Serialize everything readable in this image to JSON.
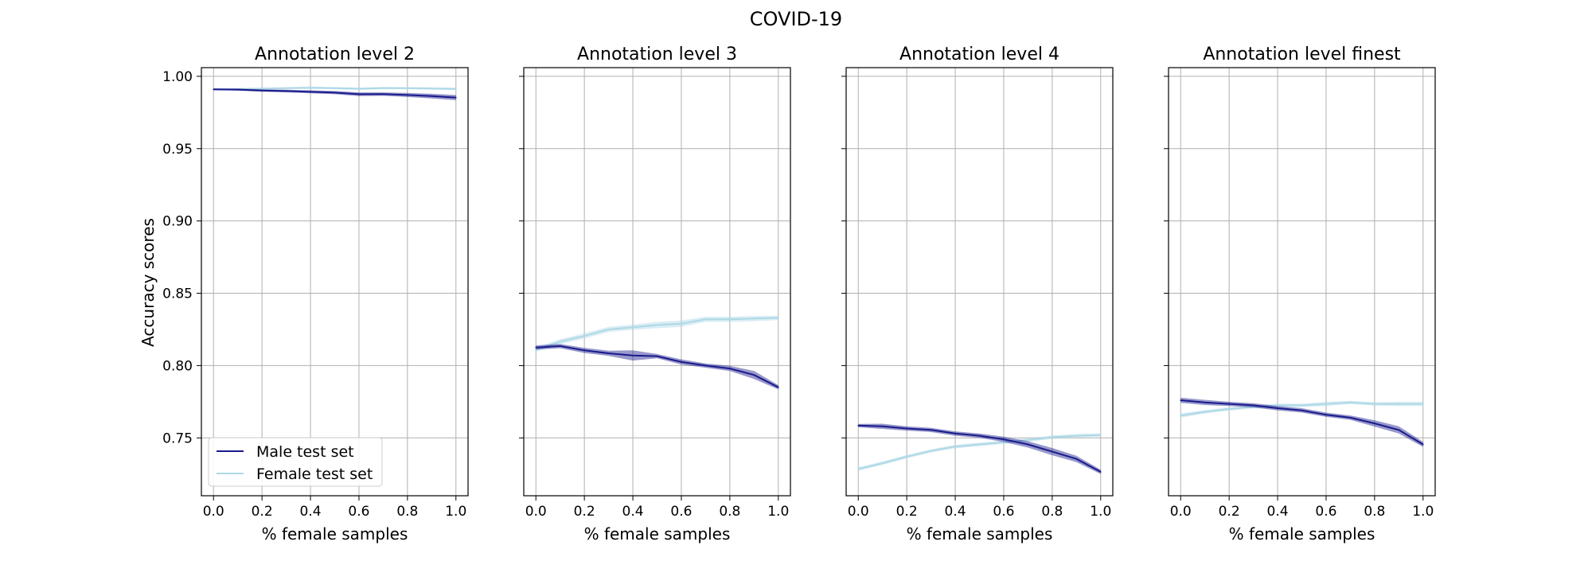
{
  "suptitle": "COVID-19",
  "ylabel": "Accuracy scores",
  "legend": {
    "entries": [
      {
        "label": "Male test set",
        "color": "#1a1a8c"
      },
      {
        "label": "Female test set",
        "color": "#add8e6"
      }
    ],
    "placement": "lower left of first panel"
  },
  "chart_data": [
    {
      "type": "line",
      "title": "Annotation level 2",
      "xlabel": "% female samples",
      "ylabel": "Accuracy scores",
      "x": [
        0.0,
        0.1,
        0.2,
        0.3,
        0.4,
        0.5,
        0.6,
        0.7,
        0.8,
        0.9,
        1.0
      ],
      "xticks": [
        "0.0",
        "0.2",
        "0.4",
        "0.6",
        "0.8",
        "1.0"
      ],
      "yticks": [
        "0.75",
        "0.80",
        "0.85",
        "0.90",
        "0.95",
        "1.00"
      ],
      "xlim": [
        -0.05,
        1.05
      ],
      "ylim": [
        0.71,
        1.006
      ],
      "grid": true,
      "series": [
        {
          "name": "Male test set",
          "color": "#1a1a8c",
          "values": [
            0.991,
            0.9908,
            0.9902,
            0.9898,
            0.9893,
            0.9887,
            0.9876,
            0.9877,
            0.9871,
            0.9863,
            0.9853
          ],
          "band": [
            0.0006,
            0.0007,
            0.0008,
            0.0009,
            0.001,
            0.0011,
            0.0013,
            0.0012,
            0.0014,
            0.0016,
            0.0018
          ]
        },
        {
          "name": "Female test set",
          "color": "#add8e6",
          "values": [
            0.9908,
            0.9912,
            0.9915,
            0.9918,
            0.9921,
            0.9918,
            0.9914,
            0.9919,
            0.9918,
            0.9916,
            0.9913
          ],
          "band": [
            0.0005,
            0.0006,
            0.0006,
            0.0007,
            0.0008,
            0.0007,
            0.0008,
            0.0008,
            0.0007,
            0.0008,
            0.0008
          ]
        }
      ]
    },
    {
      "type": "line",
      "title": "Annotation level 3",
      "xlabel": "% female samples",
      "x": [
        0.0,
        0.1,
        0.2,
        0.3,
        0.4,
        0.5,
        0.6,
        0.7,
        0.8,
        0.9,
        1.0
      ],
      "xticks": [
        "0.0",
        "0.2",
        "0.4",
        "0.6",
        "0.8",
        "1.0"
      ],
      "xlim": [
        -0.05,
        1.05
      ],
      "ylim": [
        0.71,
        1.006
      ],
      "grid": true,
      "series": [
        {
          "name": "Male test set",
          "color": "#1a1a8c",
          "values": [
            0.8125,
            0.8135,
            0.8105,
            0.8085,
            0.807,
            0.8065,
            0.8025,
            0.8,
            0.798,
            0.7935,
            0.785
          ],
          "band": [
            0.0015,
            0.0015,
            0.0018,
            0.0018,
            0.0035,
            0.0015,
            0.0018,
            0.0015,
            0.0018,
            0.0028,
            0.0015
          ]
        },
        {
          "name": "Female test set",
          "color": "#add8e6",
          "values": [
            0.811,
            0.8165,
            0.8205,
            0.825,
            0.8265,
            0.828,
            0.829,
            0.832,
            0.832,
            0.8325,
            0.833
          ],
          "band": [
            0.0015,
            0.0018,
            0.0018,
            0.0018,
            0.0018,
            0.0022,
            0.0022,
            0.0018,
            0.0018,
            0.0018,
            0.0015
          ]
        }
      ]
    },
    {
      "type": "line",
      "title": "Annotation level 4",
      "xlabel": "% female samples",
      "x": [
        0.0,
        0.1,
        0.2,
        0.3,
        0.4,
        0.5,
        0.6,
        0.7,
        0.8,
        0.9,
        1.0
      ],
      "xticks": [
        "0.0",
        "0.2",
        "0.4",
        "0.6",
        "0.8",
        "1.0"
      ],
      "xlim": [
        -0.05,
        1.05
      ],
      "ylim": [
        0.71,
        1.006
      ],
      "grid": true,
      "series": [
        {
          "name": "Male test set",
          "color": "#1a1a8c",
          "values": [
            0.7585,
            0.758,
            0.7565,
            0.7555,
            0.753,
            0.7515,
            0.749,
            0.7455,
            0.7405,
            0.7355,
            0.7265
          ],
          "band": [
            0.0012,
            0.0018,
            0.0015,
            0.0015,
            0.0015,
            0.0015,
            0.0018,
            0.0022,
            0.0025,
            0.0022,
            0.0015
          ]
        },
        {
          "name": "Female test set",
          "color": "#add8e6",
          "values": [
            0.7285,
            0.7325,
            0.737,
            0.741,
            0.744,
            0.7455,
            0.747,
            0.7485,
            0.7505,
            0.7515,
            0.752
          ],
          "band": [
            0.0012,
            0.0012,
            0.0012,
            0.0012,
            0.0012,
            0.0012,
            0.0012,
            0.0012,
            0.0012,
            0.0012,
            0.0012
          ]
        }
      ]
    },
    {
      "type": "line",
      "title": "Annotation level finest",
      "xlabel": "% female samples",
      "x": [
        0.0,
        0.1,
        0.2,
        0.3,
        0.4,
        0.5,
        0.6,
        0.7,
        0.8,
        0.9,
        1.0
      ],
      "xticks": [
        "0.0",
        "0.2",
        "0.4",
        "0.6",
        "0.8",
        "1.0"
      ],
      "xlim": [
        -0.05,
        1.05
      ],
      "ylim": [
        0.71,
        1.006
      ],
      "grid": true,
      "series": [
        {
          "name": "Male test set",
          "color": "#1a1a8c",
          "values": [
            0.776,
            0.7745,
            0.7735,
            0.7725,
            0.7705,
            0.769,
            0.766,
            0.764,
            0.76,
            0.7555,
            0.7455
          ],
          "band": [
            0.0018,
            0.0018,
            0.0015,
            0.0015,
            0.0015,
            0.0015,
            0.0015,
            0.0015,
            0.0022,
            0.0025,
            0.0018
          ]
        },
        {
          "name": "Female test set",
          "color": "#add8e6",
          "values": [
            0.7655,
            0.768,
            0.77,
            0.7715,
            0.7725,
            0.7725,
            0.7735,
            0.7745,
            0.7735,
            0.7735,
            0.7735
          ],
          "band": [
            0.0015,
            0.0012,
            0.0012,
            0.0012,
            0.0012,
            0.0012,
            0.0015,
            0.0012,
            0.0012,
            0.0015,
            0.0015
          ]
        }
      ]
    }
  ]
}
